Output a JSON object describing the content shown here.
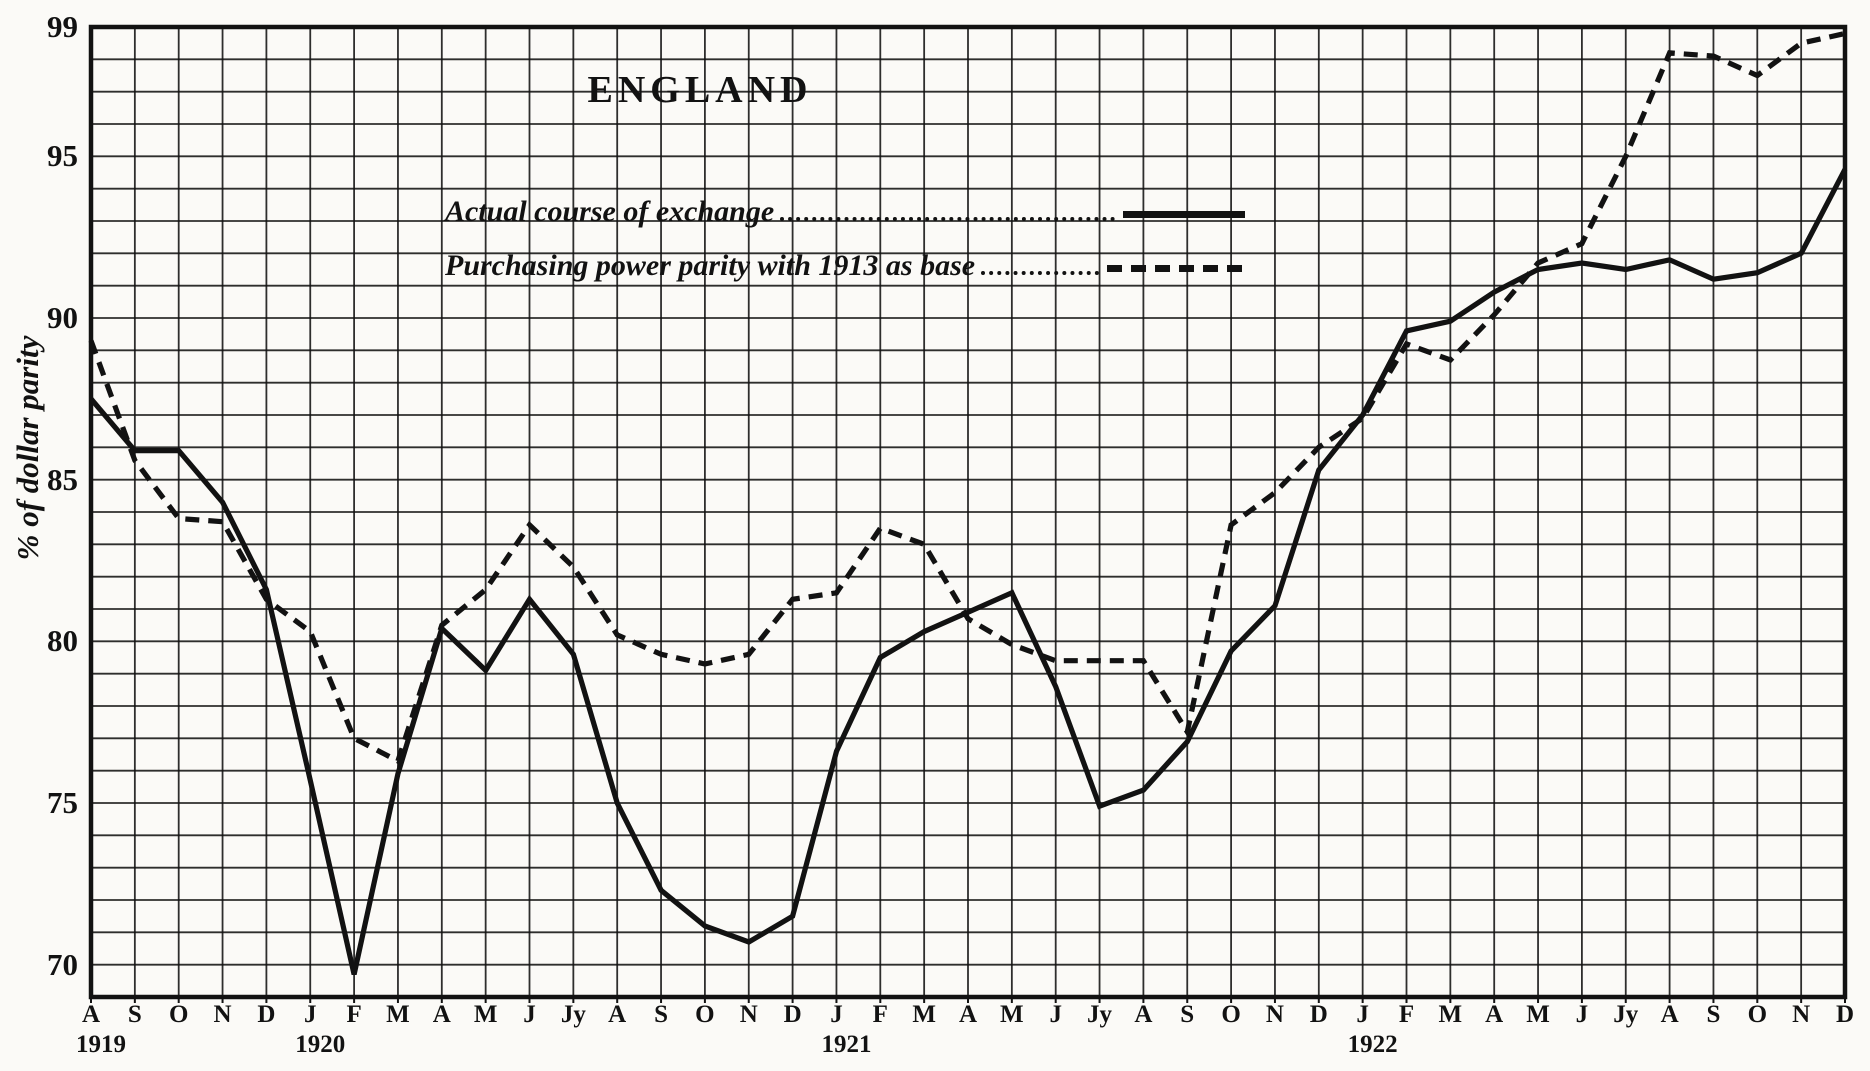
{
  "page": {
    "background": "#fbfaf7",
    "ink": "#121212"
  },
  "chart_data": {
    "type": "line",
    "title": "ENGLAND",
    "y_axis_title": "% of dollar parity",
    "ylim": [
      69,
      99
    ],
    "y_ticks": [
      99,
      95,
      90,
      85,
      80,
      75,
      70
    ],
    "grid": "every unit both axes, black on paper",
    "legend_position": "upper-left inside plot",
    "x_labels": [
      "A",
      "S",
      "O",
      "N",
      "D",
      "J",
      "F",
      "M",
      "A",
      "M",
      "J",
      "Jy",
      "A",
      "S",
      "O",
      "N",
      "D",
      "J",
      "F",
      "M",
      "A",
      "M",
      "J",
      "Jy",
      "A",
      "S",
      "O",
      "N",
      "D",
      "J",
      "F",
      "M",
      "A",
      "M",
      "J",
      "Jy",
      "A",
      "S",
      "O",
      "N",
      "D"
    ],
    "year_labels": [
      {
        "label": "1919",
        "month_index": 0
      },
      {
        "label": "1920",
        "month_index": 5
      },
      {
        "label": "1921",
        "month_index": 17
      },
      {
        "label": "1922",
        "month_index": 29
      }
    ],
    "legend": [
      {
        "label": "Actual course of exchange",
        "style": "solid"
      },
      {
        "label": "Purchasing power parity with 1913 as base",
        "style": "dashed"
      }
    ],
    "series": [
      {
        "name": "Actual course of exchange",
        "line": "solid",
        "values": [
          87.5,
          85.9,
          85.9,
          84.3,
          81.6,
          75.7,
          69.7,
          75.9,
          80.4,
          79.1,
          81.3,
          79.6,
          75.0,
          72.3,
          71.2,
          70.7,
          71.5,
          76.6,
          79.5,
          80.3,
          80.9,
          81.5,
          78.6,
          74.9,
          75.4,
          76.9,
          79.7,
          81.1,
          85.3,
          87.0,
          89.6,
          89.9,
          90.8,
          91.5,
          91.7,
          91.5,
          91.8,
          91.2,
          91.4,
          92.0,
          94.6
        ]
      },
      {
        "name": "Purchasing power parity with 1913 as base",
        "line": "dashed",
        "values": [
          89.3,
          85.6,
          83.8,
          83.7,
          81.3,
          80.3,
          77.0,
          76.3,
          80.5,
          81.6,
          83.6,
          82.3,
          80.2,
          79.6,
          79.3,
          79.6,
          81.3,
          81.5,
          83.5,
          83.0,
          80.7,
          79.9,
          79.4,
          79.4,
          79.4,
          77.2,
          83.6,
          84.6,
          86.0,
          86.9,
          89.2,
          88.7,
          90.1,
          91.7,
          92.3,
          95.0,
          98.2,
          98.1,
          97.5,
          98.5,
          98.8
        ]
      }
    ]
  }
}
